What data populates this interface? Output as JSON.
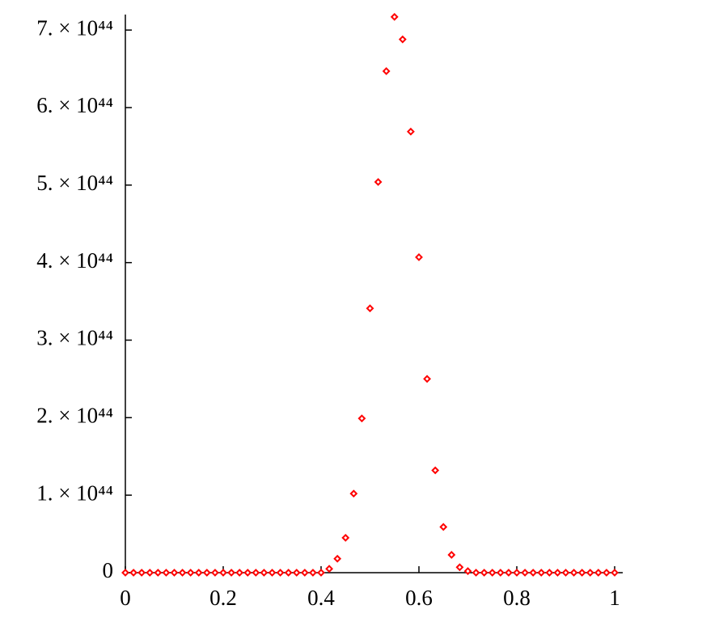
{
  "chart_data": {
    "type": "scatter",
    "x": [
      0,
      0.016667,
      0.033333,
      0.05,
      0.066667,
      0.083333,
      0.1,
      0.116667,
      0.133333,
      0.15,
      0.166667,
      0.183333,
      0.2,
      0.216667,
      0.233333,
      0.25,
      0.266667,
      0.283333,
      0.3,
      0.316667,
      0.333333,
      0.35,
      0.366667,
      0.383333,
      0.4,
      0.416667,
      0.433333,
      0.45,
      0.466667,
      0.483333,
      0.5,
      0.516667,
      0.533333,
      0.55,
      0.566667,
      0.583333,
      0.6,
      0.616667,
      0.633333,
      0.65,
      0.666667,
      0.683333,
      0.7,
      0.716667,
      0.733333,
      0.75,
      0.766667,
      0.783333,
      0.8,
      0.816667,
      0.833333,
      0.85,
      0.866667,
      0.883333,
      0.9,
      0.916667,
      0.933333,
      0.95,
      0.966667,
      0.983333,
      1
    ],
    "values": [
      0,
      0,
      0,
      0,
      0,
      0,
      0,
      0,
      0,
      0,
      0,
      0,
      0,
      0,
      0,
      0,
      0,
      0,
      0,
      0,
      0,
      0,
      0,
      0,
      0,
      5e+42,
      1.8e+43,
      4.5e+43,
      1.02e+44,
      1.99e+44,
      3.41e+44,
      5.04e+44,
      6.47e+44,
      7.17e+44,
      6.88e+44,
      5.69e+44,
      4.07e+44,
      2.5e+44,
      1.32e+44,
      5.9e+43,
      2.3e+43,
      7e+42,
      2e+42,
      0,
      0,
      0,
      0,
      0,
      0,
      0,
      0,
      0,
      0,
      0,
      0,
      0,
      0,
      0,
      0,
      0,
      0
    ],
    "color": "#ff0000",
    "xlim": [
      0,
      1
    ],
    "xticks": [
      0,
      0.2,
      0.4,
      0.6,
      0.8,
      1
    ],
    "ylim": [
      0,
      7.2e+44
    ],
    "yticks": [
      0,
      {
        "value": 1e+44,
        "label": "1. × 10⁴⁴"
      },
      {
        "value": 2e+44,
        "label": "2. × 10⁴⁴"
      },
      {
        "value": 3e+44,
        "label": "3. × 10⁴⁴"
      },
      {
        "value": 4e+44,
        "label": "4. × 10⁴⁴"
      },
      {
        "value": 5e+44,
        "label": "5. × 10⁴⁴"
      },
      {
        "value": 6e+44,
        "label": "6. × 10⁴⁴"
      },
      {
        "value": 7e+44,
        "label": "7. × 10⁴⁴"
      }
    ]
  }
}
